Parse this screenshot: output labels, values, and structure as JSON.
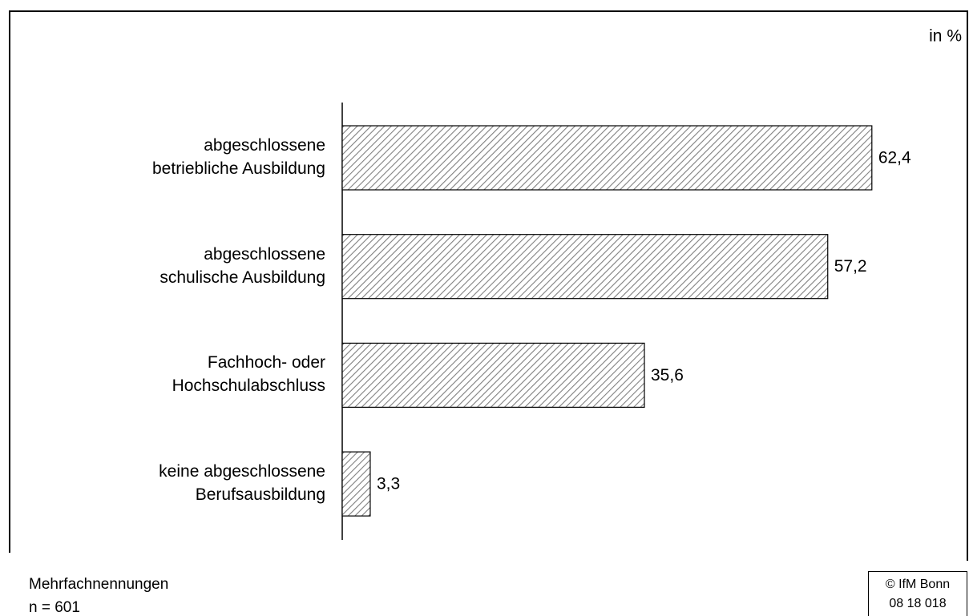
{
  "chart_data": {
    "type": "bar",
    "orientation": "horizontal",
    "unit_label": "in %",
    "categories": [
      "abgeschlossene\nbetriebliche Ausbildung",
      "abgeschlossene\nschulische Ausbildung",
      "Fachhoch- oder\nHochschulabschluss",
      "keine abgeschlossene\nBerufsausbildung"
    ],
    "values": [
      62.4,
      57.2,
      35.6,
      3.3
    ],
    "value_labels": [
      "62,4",
      "57,2",
      "35,6",
      "3,3"
    ],
    "color": "#808080",
    "notes": [
      "Mehrfachnennungen",
      "n = 601"
    ],
    "source": [
      "© IfM Bonn",
      "08 18 018"
    ]
  }
}
